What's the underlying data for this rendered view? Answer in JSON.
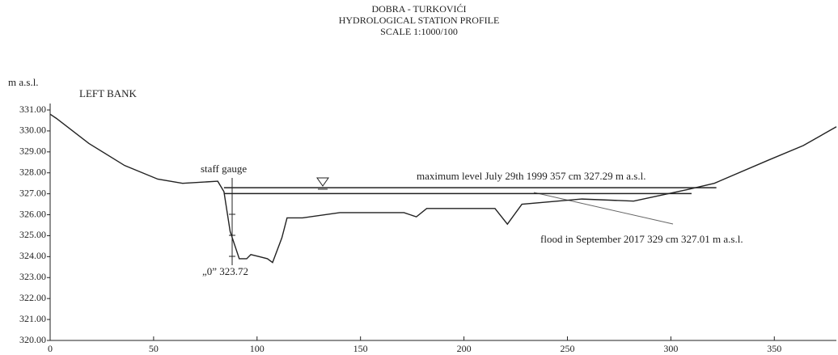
{
  "chart_data": {
    "type": "line",
    "title": [
      "DOBRA - TURKOVIĆI",
      "HYDROLOGICAL STATION PROFILE",
      "SCALE 1:1000/100"
    ],
    "ylabel": "m a.s.l.",
    "annotations": [
      "LEFT BANK",
      "staff gauge",
      "maximum level July 29th 1999  357 cm  327.29 m a.s.l.",
      "flood in September 2017  329 cm  327.01 m a.s.l.",
      "„0” 323.72"
    ],
    "xlim": [
      0,
      380
    ],
    "ylim": [
      320,
      331
    ],
    "xticks": [
      0,
      50,
      100,
      150,
      200,
      250,
      300,
      350
    ],
    "yticks": [
      {
        "value": 320,
        "label": "320.00"
      },
      {
        "value": 321,
        "label": "321.00"
      },
      {
        "value": 322,
        "label": "322.00"
      },
      {
        "value": 323,
        "label": "323.00"
      },
      {
        "value": 324,
        "label": "324.00"
      },
      {
        "value": 325,
        "label": "325.00"
      },
      {
        "value": 326,
        "label": "326.00"
      },
      {
        "value": 327,
        "label": "327.00"
      },
      {
        "value": 328,
        "label": "328.00"
      },
      {
        "value": 329,
        "label": "329.00"
      },
      {
        "value": 330,
        "label": "330.00"
      },
      {
        "value": 331,
        "label": "331.00"
      }
    ],
    "series": [
      {
        "color": "#222222",
        "x": [
          0,
          3,
          18.75,
          36,
          52,
          64,
          81,
          84,
          87,
          91.4,
          95,
          97,
          101,
          105,
          107.5,
          112,
          114.5,
          122,
          140,
          171,
          177,
          182,
          215,
          221,
          228,
          257,
          282,
          308,
          321,
          347,
          364,
          380
        ],
        "values": [
          330.8,
          330.6,
          329.4,
          328.35,
          327.7,
          327.5,
          327.6,
          327.1,
          325.2,
          323.9,
          323.9,
          324.1,
          324.0,
          323.9,
          323.72,
          324.9,
          325.85,
          325.85,
          326.1,
          326.1,
          325.9,
          326.3,
          326.3,
          325.55,
          326.5,
          326.75,
          326.65,
          327.2,
          327.5,
          328.6,
          329.3,
          330.2
        ]
      },
      {
        "color": "#222222",
        "x": [
          84,
          322
        ],
        "values": [
          327.29,
          327.29
        ]
      },
      {
        "color": "#222222",
        "x": [
          84,
          310
        ],
        "values": [
          327.01,
          327.01
        ]
      }
    ]
  }
}
